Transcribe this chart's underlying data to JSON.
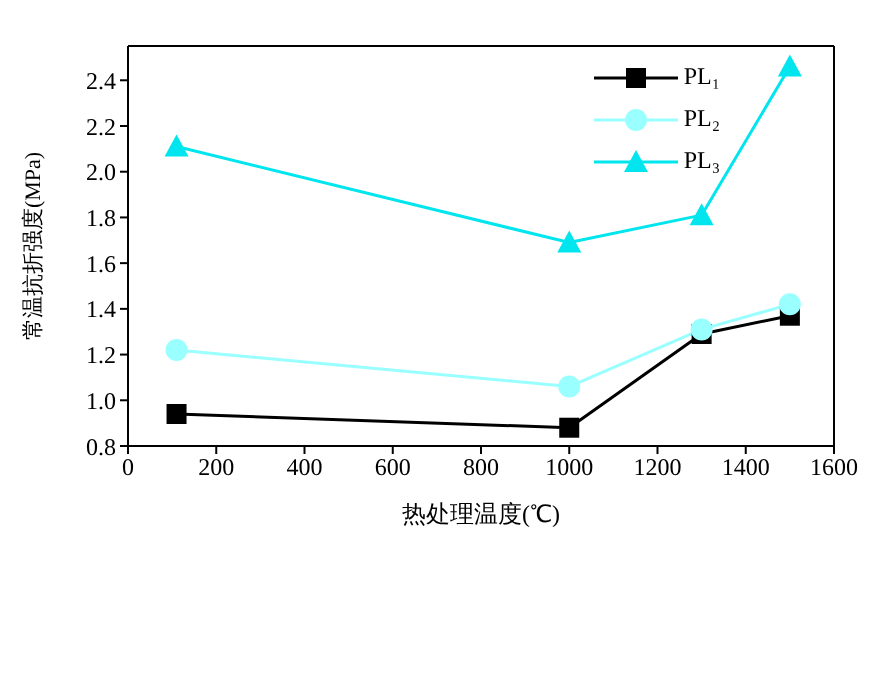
{
  "chart_data": {
    "type": "line",
    "xlabel": "热处理温度(℃)",
    "ylabel": "常温抗折强度(MPa)",
    "x": [
      110,
      1000,
      1300,
      1500
    ],
    "series": [
      {
        "name": "PL₁",
        "color": "#000000",
        "marker": "square",
        "values": [
          0.94,
          0.88,
          1.29,
          1.37
        ]
      },
      {
        "name": "PL₂",
        "color": "#99ffff",
        "marker": "circle",
        "values": [
          1.22,
          1.06,
          1.31,
          1.42
        ]
      },
      {
        "name": "PL₃",
        "color": "#00e5ee",
        "marker": "triangle",
        "values": [
          2.11,
          1.69,
          1.81,
          2.46
        ]
      }
    ],
    "xlim": [
      0,
      1600
    ],
    "xticks": [
      0,
      200,
      400,
      600,
      800,
      1000,
      1200,
      1400,
      1600
    ],
    "ylim": [
      0.8,
      2.55
    ],
    "yticks": [
      0.8,
      {
        "value": 1,
        "label": "1.0"
      },
      1.2,
      1.4,
      1.6,
      1.8,
      {
        "value": 2,
        "label": "2.0"
      },
      2.2,
      2.4
    ],
    "grid": false,
    "legend": "top right",
    "line_style": "solid"
  }
}
